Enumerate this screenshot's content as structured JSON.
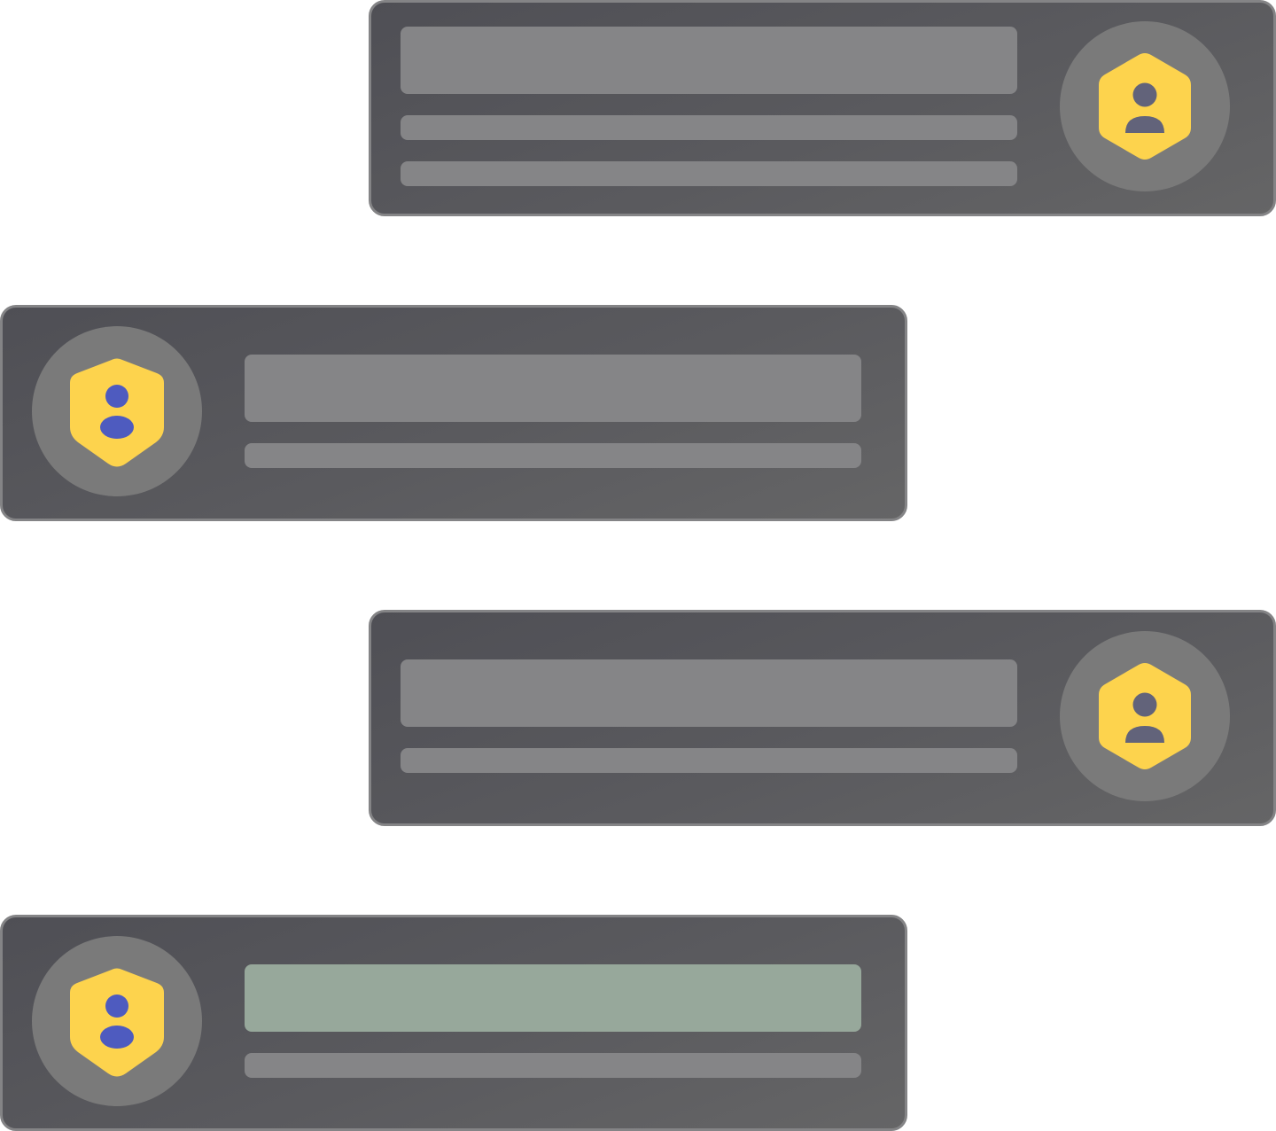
{
  "messages": [
    {
      "align": "right",
      "avatar_icon": "hexagon-user-icon",
      "line_count": 3,
      "title_color": "#858587"
    },
    {
      "align": "left",
      "avatar_icon": "shield-user-icon",
      "line_count": 2,
      "title_color": "#858587"
    },
    {
      "align": "right",
      "avatar_icon": "hexagon-user-icon",
      "line_count": 2,
      "title_color": "#858587"
    },
    {
      "align": "left",
      "avatar_icon": "shield-user-icon",
      "line_count": 2,
      "title_color": "#97a89b",
      "highlighted": true
    }
  ],
  "colors": {
    "page_background": "#ffffff",
    "bubble_top": "#4f4f55",
    "bubble_bottom": "#656566",
    "bubble_border": "#848486",
    "avatar_disc": "#7a7a7a",
    "placeholder_line": "#858587",
    "highlight_line": "#97a89b",
    "badge_yellow": "#fdd34d",
    "person_gray": "#62637a",
    "person_blue": "#4e5bbf"
  }
}
